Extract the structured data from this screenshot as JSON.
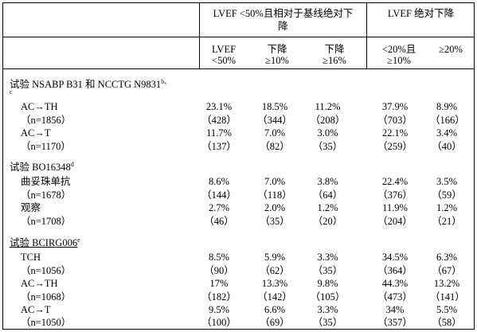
{
  "header": {
    "group1_line1": "LVEF <50%且相对于基线绝对下",
    "group1_line2": "降",
    "group2": "LVEF 绝对下降",
    "col1": [
      "LVEF",
      "<50%"
    ],
    "col2": [
      "下降",
      "≥10%"
    ],
    "col3": [
      "下降",
      "≥16%"
    ],
    "col4": [
      "<20%且",
      "≥10%"
    ],
    "col5": [
      "≥20%"
    ]
  },
  "trials": [
    {
      "title": "试验 NSABP B31 和 NCCTG N9831",
      "footnote": "b、",
      "footnote_cont": "c",
      "underline": false,
      "arms": [
        {
          "name": "AC→TH",
          "pct": [
            "23.1%",
            "18.5%",
            "11.2%",
            "37.9%",
            "8.9%"
          ],
          "n": "（n=1856）",
          "counts": [
            "（428）",
            "（344）",
            "（208）",
            "（703）",
            "（166）"
          ]
        },
        {
          "name": "AC→T",
          "pct": [
            "11.7%",
            "7.0%",
            "3.0%",
            "22.1%",
            "3.4%"
          ],
          "n": "（n=1170）",
          "counts": [
            "（137）",
            "（82）",
            "（35）",
            "（259）",
            "（40）"
          ]
        }
      ]
    },
    {
      "title": "试验 BO16348",
      "footnote": "d",
      "underline": false,
      "arms": [
        {
          "name": "曲妥珠单抗",
          "pct": [
            "8.6%",
            "7.0%",
            "3.8%",
            "22.4%",
            "3.5%"
          ],
          "n": "（n=1678）",
          "counts": [
            "（144）",
            "（118）",
            "（64）",
            "（376）",
            "（59）"
          ]
        },
        {
          "name": "观察",
          "pct": [
            "2.7%",
            "2.0%",
            "1.2%",
            "11.9%",
            "1.2%"
          ],
          "n": "（n=1708）",
          "counts": [
            "（46）",
            "（35）",
            "（20）",
            "（204）",
            "（21）"
          ]
        }
      ]
    },
    {
      "title": "试验 BCIRG006",
      "footnote": "e",
      "underline": true,
      "arms": [
        {
          "name": "TCH",
          "pct": [
            "8.5%",
            "5.9%",
            "3.3%",
            "34.5%",
            "6.3%"
          ],
          "n": "（n=1056）",
          "counts": [
            "（90）",
            "（62）",
            "（35）",
            "（364）",
            "（67）"
          ]
        },
        {
          "name": "AC→TH",
          "pct": [
            "17%",
            "13.3%",
            "9.8%",
            "44.3%",
            "13.2%"
          ],
          "n": "（n=1068）",
          "counts": [
            "（182）",
            "（142）",
            "（105）",
            "（473）",
            "（141）"
          ]
        },
        {
          "name": "AC→T",
          "pct": [
            "9.5%",
            "6.6%",
            "3.3%",
            "34%",
            "5.5%"
          ],
          "n": "（n=1050）",
          "counts": [
            "（100）",
            "（69）",
            "（35）",
            "（357）",
            "（58）"
          ]
        }
      ]
    }
  ]
}
